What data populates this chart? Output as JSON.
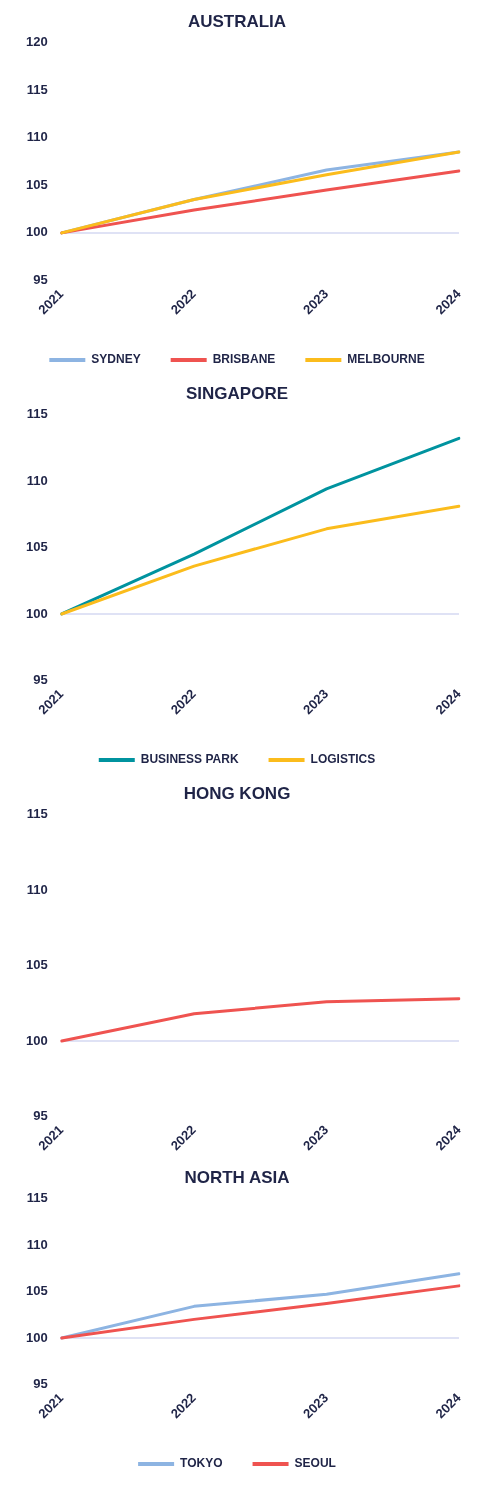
{
  "chart_data": [
    {
      "type": "line",
      "title": "AUSTRALIA",
      "categories": [
        "2021",
        "2022",
        "2023",
        "2024"
      ],
      "ylim": [
        95,
        120
      ],
      "yticks": [
        95,
        100,
        105,
        110,
        115,
        120
      ],
      "grid": false,
      "legend": "bottom",
      "marker": "none",
      "line_style": "solid",
      "ref_lines": [
        {
          "axis": "y",
          "value": 100,
          "color": "#d4d8f2"
        }
      ],
      "series": [
        {
          "name": "SYDNEY",
          "color": "#8db4e2",
          "values": [
            100,
            103.5,
            106.6,
            108.5
          ]
        },
        {
          "name": "BRISBANE",
          "color": "#ef5350",
          "values": [
            100,
            102.4,
            104.5,
            106.5
          ]
        },
        {
          "name": "MELBOURNE",
          "color": "#fbbc1c",
          "values": [
            100,
            103.5,
            106.1,
            108.5
          ]
        }
      ]
    },
    {
      "type": "line",
      "title": "SINGAPORE",
      "categories": [
        "2021",
        "2022",
        "2023",
        "2024"
      ],
      "ylim": [
        95,
        115
      ],
      "yticks": [
        95,
        100,
        105,
        110,
        115
      ],
      "grid": false,
      "legend": "bottom",
      "marker": "none",
      "line_style": "solid",
      "ref_lines": [
        {
          "axis": "y",
          "value": 100,
          "color": "#d4d8f2"
        }
      ],
      "series": [
        {
          "name": "BUSINESS PARK",
          "color": "#00939f",
          "values": [
            100,
            104.5,
            109.4,
            113.2
          ]
        },
        {
          "name": "LOGISTICS",
          "color": "#fbbc1c",
          "values": [
            100,
            103.6,
            106.4,
            108.1
          ]
        }
      ]
    },
    {
      "type": "line",
      "title": "HONG KONG",
      "categories": [
        "2021",
        "2022",
        "2023",
        "2024"
      ],
      "ylim": [
        95,
        115
      ],
      "yticks": [
        95,
        100,
        105,
        110,
        115
      ],
      "grid": false,
      "marker": "none",
      "line_style": "solid",
      "ref_lines": [
        {
          "axis": "y",
          "value": 100,
          "color": "#d4d8f2"
        }
      ],
      "series": [
        {
          "color": "#ef5350",
          "values": [
            100,
            101.8,
            102.6,
            102.8
          ]
        }
      ]
    },
    {
      "type": "line",
      "title": "NORTH ASIA",
      "categories": [
        "2021",
        "2022",
        "2023",
        "2024"
      ],
      "ylim": [
        95,
        115
      ],
      "yticks": [
        95,
        100,
        105,
        110,
        115
      ],
      "grid": false,
      "legend": "bottom",
      "marker": "none",
      "line_style": "solid",
      "ref_lines": [
        {
          "axis": "y",
          "value": 100,
          "color": "#d4d8f2"
        }
      ],
      "series": [
        {
          "name": "TOKYO",
          "color": "#8db4e2",
          "values": [
            100,
            103.4,
            104.7,
            106.9
          ]
        },
        {
          "name": "SEOUL",
          "color": "#ef5350",
          "values": [
            100,
            102.0,
            103.7,
            105.6
          ]
        }
      ]
    }
  ]
}
